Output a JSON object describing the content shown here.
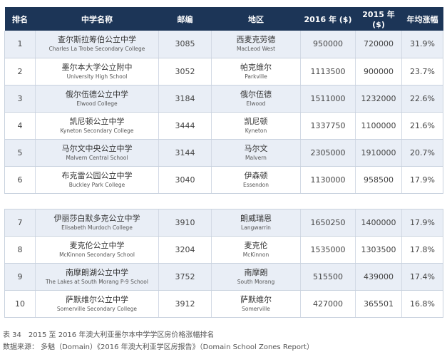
{
  "headers": [
    "排名",
    "中学名称",
    "邮编",
    "地区",
    "2016 年 ($)",
    "2015 年 ($)",
    "年均涨幅"
  ],
  "rows": [
    {
      "rank": "1",
      "school_cn": "查尔斯拉筹伯公立中学",
      "school_en": "Charles La Trobe Secondary College",
      "postcode": "3085",
      "area_cn": "西麦克劳德",
      "area_en": "MacLeod West",
      "price_2016": "950000",
      "price_2015": "720000",
      "growth": "31.9%"
    },
    {
      "rank": "2",
      "school_cn": "墨尔本大学公立附中",
      "school_en": "University High School",
      "postcode": "3052",
      "area_cn": "帕克维尔",
      "area_en": "Parkville",
      "price_2016": "1113500",
      "price_2015": "900000",
      "growth": "23.7%"
    },
    {
      "rank": "3",
      "school_cn": "俄尔伍德公立中学",
      "school_en": "Elwood College",
      "postcode": "3184",
      "area_cn": "俄尔伍德",
      "area_en": "Elwood",
      "price_2016": "1511000",
      "price_2015": "1232000",
      "growth": "22.6%"
    },
    {
      "rank": "4",
      "school_cn": "凯尼顿公立中学",
      "school_en": "Kyneton Secondary College",
      "postcode": "3444",
      "area_cn": "凯尼顿",
      "area_en": "Kyneton",
      "price_2016": "1337750",
      "price_2015": "1100000",
      "growth": "21.6%"
    },
    {
      "rank": "5",
      "school_cn": "马尔文中央公立中学",
      "school_en": "Malvern Central School",
      "postcode": "3144",
      "area_cn": "马尔文",
      "area_en": "Malvern",
      "price_2016": "2305000",
      "price_2015": "1910000",
      "growth": "20.7%"
    },
    {
      "rank": "6",
      "school_cn": "布克雷公园公立中学",
      "school_en": "Buckley Park College",
      "postcode": "3040",
      "area_cn": "伊森顿",
      "area_en": "Essendon",
      "price_2016": "1130000",
      "price_2015": "958500",
      "growth": "17.9%"
    },
    {
      "rank": "7",
      "school_cn": "伊丽莎白默多克公立中学",
      "school_en": "Elisabeth Murdoch College",
      "postcode": "3910",
      "area_cn": "朗威瑞恩",
      "area_en": "Langwarrin",
      "price_2016": "1650250",
      "price_2015": "1400000",
      "growth": "17.9%"
    },
    {
      "rank": "8",
      "school_cn": "麦克伦公立中学",
      "school_en": "McKinnon Secondary School",
      "postcode": "3204",
      "area_cn": "麦克伦",
      "area_en": "McKinnon",
      "price_2016": "1535000",
      "price_2015": "1303500",
      "growth": "17.8%"
    },
    {
      "rank": "9",
      "school_cn": "南摩朗湖公立中学",
      "school_en": "The Lakes at South Morang P-9 School",
      "postcode": "3752",
      "area_cn": "南摩朗",
      "area_en": "South Morang",
      "price_2016": "515500",
      "price_2015": "439000",
      "growth": "17.4%"
    },
    {
      "rank": "10",
      "school_cn": "萨默维尔公立中学",
      "school_en": "Somerville Secondary College",
      "postcode": "3912",
      "area_cn": "萨默维尔",
      "area_en": "Somerville",
      "price_2016": "427000",
      "price_2015": "365501",
      "growth": "16.8%"
    }
  ],
  "caption": "表 34　2015 至 2016 年澳大利亚墨尔本中学学区房价格涨幅排名",
  "source": "数据来源： 多魅（Domain）《2016 年澳大利亚学区房报告》（Domain School Zones Report）",
  "colors": {
    "header_bg": "#1c3557",
    "stripe": "#e9eef6",
    "border": "#c8d1de"
  }
}
